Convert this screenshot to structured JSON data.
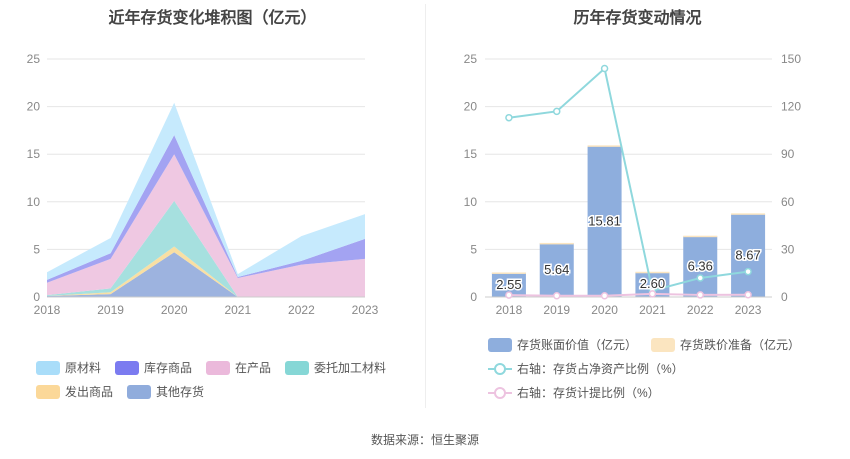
{
  "footer": {
    "source": "数据来源：恒生聚源"
  },
  "chart_data": [
    {
      "type": "area",
      "stacked": true,
      "title": "近年存货变化堆积图（亿元）",
      "categories": [
        "2018",
        "2019",
        "2020",
        "2021",
        "2022",
        "2023"
      ],
      "ylim": [
        0,
        25
      ],
      "yticks": [
        0,
        5,
        10,
        15,
        20,
        25
      ],
      "grid": true,
      "series": [
        {
          "name": "其他存货",
          "color": "#9db3df",
          "values": [
            0.1,
            0.3,
            4.7,
            0.0,
            0.0,
            0.0
          ]
        },
        {
          "name": "发出商品",
          "color": "#f9dfa3",
          "values": [
            0.0,
            0.2,
            0.6,
            0.0,
            0.0,
            0.0
          ]
        },
        {
          "name": "委托加工材料",
          "color": "#a6e0df",
          "values": [
            0.1,
            0.4,
            4.8,
            0.0,
            0.0,
            0.0
          ]
        },
        {
          "name": "在产品",
          "color": "#efc8e2",
          "values": [
            1.3,
            3.1,
            4.9,
            2.0,
            3.4,
            4.0
          ]
        },
        {
          "name": "库存商品",
          "color": "#a3a3f2",
          "values": [
            0.3,
            0.6,
            2.0,
            0.1,
            0.4,
            2.1
          ]
        },
        {
          "name": "原材料",
          "color": "#c6eafd",
          "values": [
            0.8,
            1.6,
            3.4,
            0.3,
            2.6,
            2.6
          ]
        }
      ],
      "legend": {
        "position": "bottom",
        "rows": [
          [
            {
              "name": "原材料",
              "color": "#a9ddf9"
            },
            {
              "name": "库存商品",
              "color": "#7b7bf0"
            },
            {
              "name": "在产品",
              "color": "#ebb9db"
            },
            {
              "name": "委托加工材料",
              "color": "#86d7d6"
            }
          ],
          [
            {
              "name": "发出商品",
              "color": "#fbd899"
            },
            {
              "name": "其他存货",
              "color": "#90acdc"
            }
          ]
        ]
      }
    },
    {
      "type": "bar+line",
      "title": "历年存货变动情况",
      "categories": [
        "2018",
        "2019",
        "2020",
        "2021",
        "2022",
        "2023"
      ],
      "left_axis": {
        "ylim": [
          0,
          25
        ],
        "yticks": [
          0,
          5,
          10,
          15,
          20,
          25
        ]
      },
      "right_axis": {
        "ylim": [
          0,
          150
        ],
        "yticks": [
          0,
          30,
          60,
          90,
          120,
          150
        ]
      },
      "grid": true,
      "bars": [
        {
          "name": "存货账面价值（亿元）",
          "color": "#8eaedd",
          "values": [
            2.55,
            5.64,
            15.81,
            2.6,
            6.36,
            8.67
          ],
          "labels": [
            "2.55",
            "5.64",
            "15.81",
            "2.60",
            "6.36",
            "8.67"
          ]
        },
        {
          "name": "存货跌价准备（亿元）",
          "color": "#fbe5c0",
          "values": [
            0.03,
            0.04,
            0.12,
            0.05,
            0.08,
            0.12
          ]
        }
      ],
      "lines": [
        {
          "name": "右轴：存货占净资产比例（%）",
          "color": "#8fd8dd",
          "axis": "right",
          "values": [
            113,
            117,
            144,
            4,
            12,
            16
          ]
        },
        {
          "name": "右轴：存货计提比例（%）",
          "color": "#edc3e0",
          "axis": "right",
          "values": [
            1.2,
            0.8,
            0.8,
            2.0,
            1.3,
            1.4
          ]
        }
      ]
    }
  ]
}
